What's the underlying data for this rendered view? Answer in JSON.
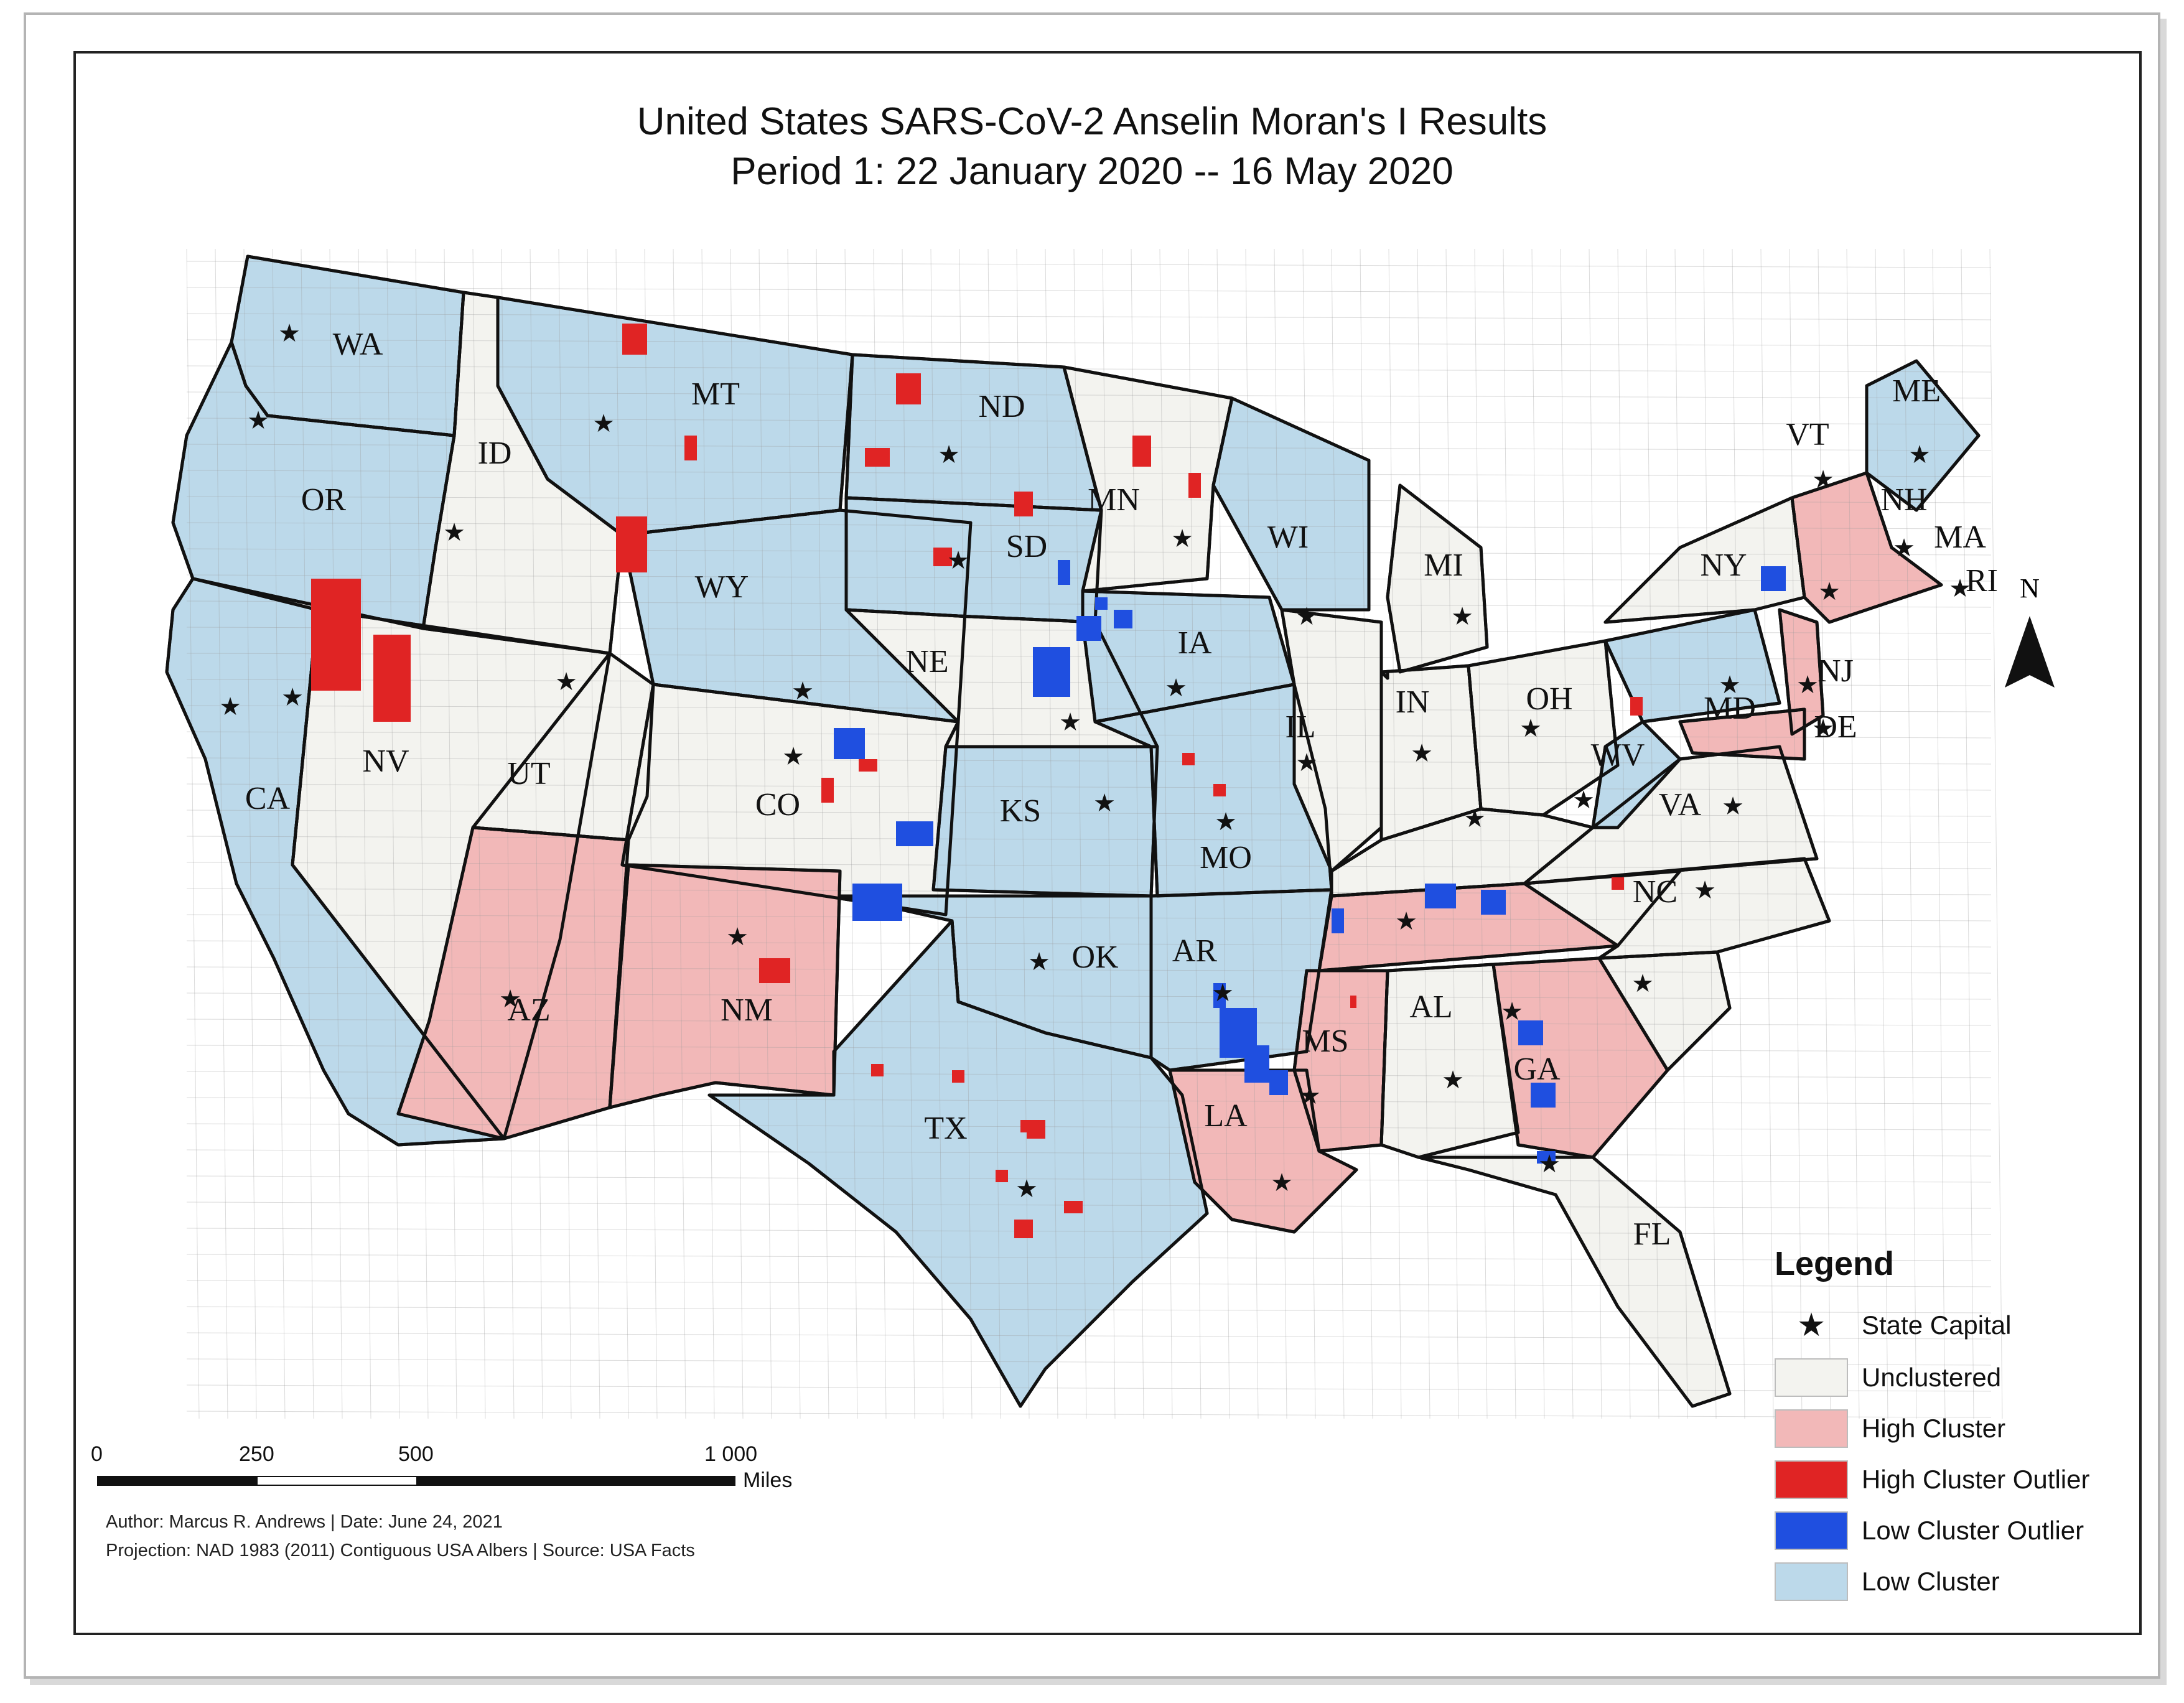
{
  "title": "United States SARS-CoV-2 Anselin Moran's I Results",
  "subtitle": "Period 1: 22 January 2020  --  16 May 2020",
  "north_label": "N",
  "colors": {
    "unclustered": "#f3f3ef",
    "high_cluster": "#f2b8b8",
    "high_cluster_outlier": "#e02424",
    "low_cluster_outlier": "#1f4fe0",
    "low_cluster": "#bcd9ea",
    "boundary": "#111111"
  },
  "legend": {
    "title": "Legend",
    "items": [
      {
        "label": "State Capital",
        "symbol": "★"
      },
      {
        "label": "Unclustered",
        "color": "#f3f3ef"
      },
      {
        "label": "High Cluster",
        "color": "#f2b8b8"
      },
      {
        "label": "High Cluster Outlier",
        "color": "#e02424"
      },
      {
        "label": "Low Cluster Outlier",
        "color": "#1f4fe0"
      },
      {
        "label": "Low Cluster",
        "color": "#bcd9ea"
      }
    ]
  },
  "scale_bar": {
    "ticks": [
      "0",
      "250",
      "500",
      "1 000"
    ],
    "unit": "Miles"
  },
  "credits": {
    "line1": "Author: Marcus R. Andrews | Date: June 24, 2021",
    "line2": "Projection: NAD 1983 (2011) Contiguous USA Albers  | Source: USA Facts"
  },
  "state_labels": [
    "WA",
    "OR",
    "CA",
    "ID",
    "NV",
    "MT",
    "WY",
    "UT",
    "AZ",
    "CO",
    "NM",
    "ND",
    "SD",
    "NE",
    "KS",
    "OK",
    "TX",
    "MN",
    "IA",
    "MO",
    "AR",
    "LA",
    "WI",
    "IL",
    "MI",
    "IN",
    "OH",
    "MS",
    "AL",
    "GA",
    "FL",
    "WV",
    "VA",
    "NC",
    "NY",
    "VT",
    "NH",
    "ME",
    "MA",
    "RI",
    "NJ",
    "MD",
    "DE"
  ]
}
